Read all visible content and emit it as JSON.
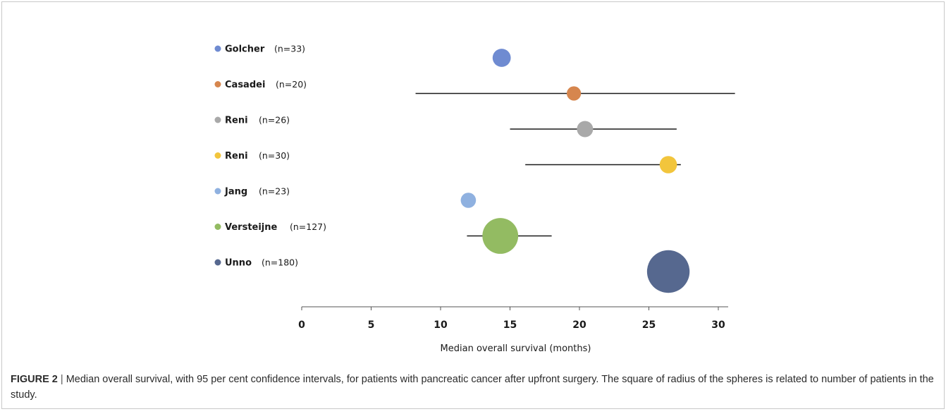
{
  "chart_data": {
    "type": "scatter",
    "xlabel": "Median overall survival (months)",
    "xlim": [
      0,
      30.5
    ],
    "xticks": [
      0,
      5,
      10,
      15,
      20,
      25,
      30
    ],
    "grid": false,
    "series": [
      {
        "name": "Golcher",
        "n_label": "(n=33)",
        "n": 33,
        "median": 14.4,
        "ci": null,
        "color": "#6f8bd1"
      },
      {
        "name": "Casadei",
        "n_label": "(n=20)",
        "n": 20,
        "median": 19.6,
        "ci": [
          8.2,
          31.2
        ],
        "color": "#d6864e"
      },
      {
        "name": "Reni",
        "n_label": "(n=26)",
        "n": 26,
        "median": 20.4,
        "ci": [
          15.0,
          27.0
        ],
        "color": "#a9a9a9"
      },
      {
        "name": "Reni",
        "n_label": "(n=30)",
        "n": 30,
        "median": 26.4,
        "ci": [
          16.1,
          27.3
        ],
        "color": "#f2c53c"
      },
      {
        "name": "Jang",
        "n_label": "(n=23)",
        "n": 23,
        "median": 12.0,
        "ci": null,
        "color": "#8fb1e0"
      },
      {
        "name": "Versteijne",
        "n_label": "(n=127)",
        "n": 127,
        "median": 14.3,
        "ci": [
          11.9,
          18.0
        ],
        "color": "#93bb62"
      },
      {
        "name": "Unno",
        "n_label": "(n=180)",
        "n": 180,
        "median": 26.4,
        "ci": null,
        "color": "#56688f"
      }
    ]
  },
  "caption": {
    "label": "FIGURE 2",
    "separator": "|",
    "text": "Median overall survival, with 95 per cent confidence intervals, for patients with pancreatic cancer after upfront surgery. The square of radius of the spheres is related to number of patients in the study."
  }
}
